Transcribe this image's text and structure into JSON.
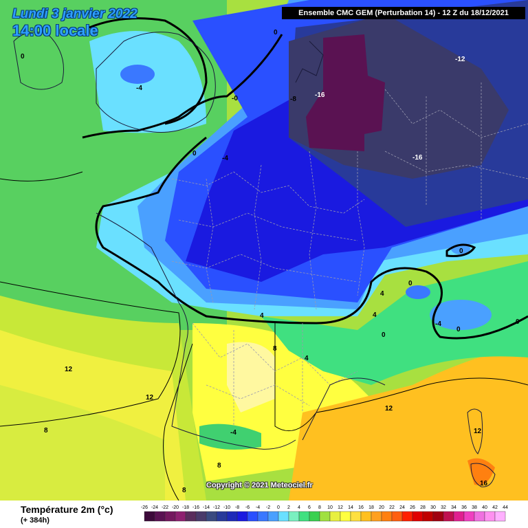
{
  "header": {
    "date": "Lundi 3 janvier 2022",
    "time": "14:00 locale",
    "model": "Ensemble CMC GEM  (Perturbation 14)  -  12 Z du 18/12/2021"
  },
  "copyright": "Copyright © 2021 Meteociel.fr",
  "legend": {
    "title": "Température 2m (°c)",
    "subtitle": "(+ 384h)",
    "ticks": [
      "-26",
      "-24",
      "-22",
      "-20",
      "-18",
      "-16",
      "-14",
      "-12",
      "-10",
      "-8",
      "-6",
      "-4",
      "-2",
      "0",
      "2",
      "4",
      "6",
      "8",
      "10",
      "12",
      "14",
      "16",
      "18",
      "20",
      "22",
      "24",
      "26",
      "28",
      "30",
      "32",
      "34",
      "36",
      "38",
      "40",
      "42",
      "44"
    ],
    "colors": [
      "#3d0a3a",
      "#5a1252",
      "#74185e",
      "#8e2070",
      "#5a2d5c",
      "#4a3a6a",
      "#3a4a80",
      "#283a9a",
      "#1e2ab8",
      "#1a1ae0",
      "#2a50ff",
      "#3a78ff",
      "#4aa0ff",
      "#6ae0ff",
      "#7af0c0",
      "#40e080",
      "#3ad050",
      "#a0e040",
      "#e8f040",
      "#ffff40",
      "#ffe040",
      "#ffc020",
      "#ffa020",
      "#ff8010",
      "#ff6010",
      "#ff2000",
      "#e00000",
      "#c00000",
      "#a00010",
      "#c01050",
      "#e02090",
      "#f040c0",
      "#f070e0",
      "#ff90f0",
      "#ffb0ff"
    ]
  },
  "contour_labels": [
    {
      "text": "0"
    },
    {
      "text": "0"
    },
    {
      "text": "-4"
    },
    {
      "text": "-0"
    },
    {
      "text": "-8"
    },
    {
      "text": "-16"
    },
    {
      "text": "-12"
    },
    {
      "text": "-16"
    },
    {
      "text": "0"
    },
    {
      "text": "-4"
    },
    {
      "text": "0"
    },
    {
      "text": "0"
    },
    {
      "text": "-4"
    },
    {
      "text": "0"
    },
    {
      "text": "0"
    },
    {
      "text": "4"
    },
    {
      "text": "4"
    },
    {
      "text": "4"
    },
    {
      "text": "0"
    },
    {
      "text": "8"
    },
    {
      "text": "4"
    },
    {
      "text": "12"
    },
    {
      "text": "12"
    },
    {
      "text": "8"
    },
    {
      "text": "-4"
    },
    {
      "text": "8"
    },
    {
      "text": "8"
    },
    {
      "text": "12"
    },
    {
      "text": "12"
    },
    {
      "text": "16"
    }
  ]
}
